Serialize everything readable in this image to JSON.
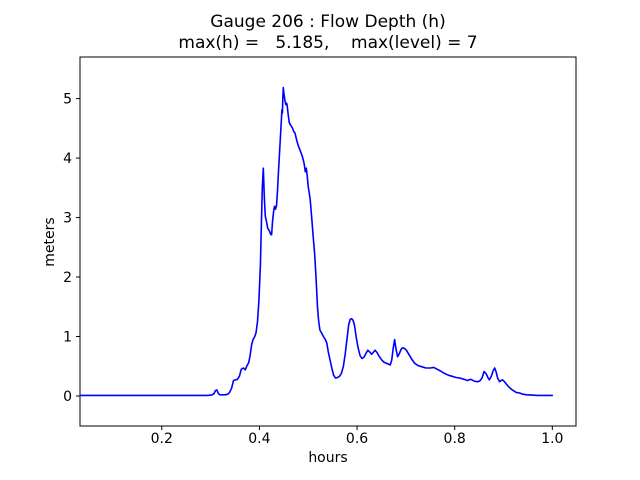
{
  "figure": {
    "background": "#ffffff"
  },
  "chart_data": {
    "type": "line",
    "title": "Gauge 206 : Flow Depth (h)",
    "subtitle": "max(h) =   5.185,    max(level) = 7",
    "xlabel": "hours",
    "ylabel": "meters",
    "max_h": 5.185,
    "max_level": 7,
    "grid": false,
    "legend": "none",
    "line_color": "#0000ff",
    "axis_color": "#000000",
    "xlim": [
      0.0325,
      1.0485
    ],
    "ylim": [
      -0.505,
      5.7
    ],
    "xticks": [
      0.2,
      0.4,
      0.6,
      0.8,
      1.0
    ],
    "xtick_labels": [
      "0.2",
      "0.4",
      "0.6",
      "0.8",
      "1.0"
    ],
    "yticks": [
      0,
      1,
      2,
      3,
      4,
      5
    ],
    "ytick_labels": [
      "0",
      "1",
      "2",
      "3",
      "4",
      "5"
    ],
    "series": [
      {
        "name": "flow-depth-h",
        "points": [
          [
            0.033,
            0.01
          ],
          [
            0.06,
            0.01
          ],
          [
            0.09,
            0.01
          ],
          [
            0.12,
            0.01
          ],
          [
            0.15,
            0.01
          ],
          [
            0.18,
            0.01
          ],
          [
            0.21,
            0.01
          ],
          [
            0.24,
            0.01
          ],
          [
            0.27,
            0.01
          ],
          [
            0.295,
            0.01
          ],
          [
            0.303,
            0.02
          ],
          [
            0.307,
            0.04
          ],
          [
            0.31,
            0.09
          ],
          [
            0.313,
            0.1
          ],
          [
            0.316,
            0.04
          ],
          [
            0.319,
            0.02
          ],
          [
            0.324,
            0.02
          ],
          [
            0.33,
            0.02
          ],
          [
            0.335,
            0.03
          ],
          [
            0.339,
            0.06
          ],
          [
            0.343,
            0.13
          ],
          [
            0.347,
            0.26
          ],
          [
            0.351,
            0.27
          ],
          [
            0.355,
            0.28
          ],
          [
            0.359,
            0.33
          ],
          [
            0.363,
            0.45
          ],
          [
            0.367,
            0.47
          ],
          [
            0.371,
            0.44
          ],
          [
            0.374,
            0.5
          ],
          [
            0.378,
            0.56
          ],
          [
            0.381,
            0.68
          ],
          [
            0.384,
            0.86
          ],
          [
            0.387,
            0.95
          ],
          [
            0.39,
            0.99
          ],
          [
            0.393,
            1.06
          ],
          [
            0.396,
            1.25
          ],
          [
            0.399,
            1.6
          ],
          [
            0.402,
            2.2
          ],
          [
            0.404,
            2.9
          ],
          [
            0.406,
            3.5
          ],
          [
            0.408,
            3.83
          ],
          [
            0.41,
            3.35
          ],
          [
            0.412,
            3.02
          ],
          [
            0.414,
            2.96
          ],
          [
            0.417,
            2.82
          ],
          [
            0.42,
            2.78
          ],
          [
            0.423,
            2.72
          ],
          [
            0.425,
            2.71
          ],
          [
            0.427,
            2.95
          ],
          [
            0.429,
            3.1
          ],
          [
            0.431,
            3.19
          ],
          [
            0.433,
            3.14
          ],
          [
            0.435,
            3.2
          ],
          [
            0.437,
            3.45
          ],
          [
            0.439,
            3.75
          ],
          [
            0.441,
            4.05
          ],
          [
            0.443,
            4.35
          ],
          [
            0.445,
            4.65
          ],
          [
            0.446,
            4.81
          ],
          [
            0.447,
            4.76
          ],
          [
            0.448,
            5.0
          ],
          [
            0.449,
            5.185
          ],
          [
            0.45,
            5.1
          ],
          [
            0.451,
            5.05
          ],
          [
            0.452,
            4.98
          ],
          [
            0.454,
            4.9
          ],
          [
            0.456,
            4.92
          ],
          [
            0.457,
            4.88
          ],
          [
            0.459,
            4.73
          ],
          [
            0.461,
            4.6
          ],
          [
            0.464,
            4.55
          ],
          [
            0.466,
            4.53
          ],
          [
            0.468,
            4.5
          ],
          [
            0.47,
            4.45
          ],
          [
            0.473,
            4.42
          ],
          [
            0.477,
            4.28
          ],
          [
            0.48,
            4.2
          ],
          [
            0.483,
            4.14
          ],
          [
            0.487,
            4.05
          ],
          [
            0.49,
            3.97
          ],
          [
            0.492,
            3.89
          ],
          [
            0.494,
            3.77
          ],
          [
            0.496,
            3.83
          ],
          [
            0.498,
            3.69
          ],
          [
            0.5,
            3.52
          ],
          [
            0.502,
            3.42
          ],
          [
            0.504,
            3.3
          ],
          [
            0.507,
            3.02
          ],
          [
            0.51,
            2.7
          ],
          [
            0.513,
            2.4
          ],
          [
            0.516,
            2.0
          ],
          [
            0.519,
            1.5
          ],
          [
            0.521,
            1.28
          ],
          [
            0.524,
            1.11
          ],
          [
            0.528,
            1.05
          ],
          [
            0.531,
            1.0
          ],
          [
            0.535,
            0.95
          ],
          [
            0.538,
            0.89
          ],
          [
            0.541,
            0.75
          ],
          [
            0.544,
            0.63
          ],
          [
            0.548,
            0.48
          ],
          [
            0.552,
            0.35
          ],
          [
            0.556,
            0.3
          ],
          [
            0.56,
            0.31
          ],
          [
            0.564,
            0.33
          ],
          [
            0.568,
            0.38
          ],
          [
            0.572,
            0.5
          ],
          [
            0.576,
            0.72
          ],
          [
            0.58,
            1.0
          ],
          [
            0.583,
            1.2
          ],
          [
            0.586,
            1.29
          ],
          [
            0.589,
            1.3
          ],
          [
            0.592,
            1.27
          ],
          [
            0.595,
            1.18
          ],
          [
            0.598,
            1.0
          ],
          [
            0.602,
            0.82
          ],
          [
            0.606,
            0.68
          ],
          [
            0.61,
            0.63
          ],
          [
            0.614,
            0.65
          ],
          [
            0.618,
            0.71
          ],
          [
            0.622,
            0.77
          ],
          [
            0.626,
            0.74
          ],
          [
            0.63,
            0.7
          ],
          [
            0.634,
            0.74
          ],
          [
            0.637,
            0.77
          ],
          [
            0.641,
            0.73
          ],
          [
            0.645,
            0.67
          ],
          [
            0.65,
            0.61
          ],
          [
            0.655,
            0.57
          ],
          [
            0.66,
            0.55
          ],
          [
            0.664,
            0.54
          ],
          [
            0.668,
            0.52
          ],
          [
            0.671,
            0.6
          ],
          [
            0.674,
            0.8
          ],
          [
            0.677,
            0.95
          ],
          [
            0.68,
            0.78
          ],
          [
            0.683,
            0.66
          ],
          [
            0.686,
            0.7
          ],
          [
            0.69,
            0.78
          ],
          [
            0.693,
            0.81
          ],
          [
            0.697,
            0.8
          ],
          [
            0.701,
            0.77
          ],
          [
            0.706,
            0.7
          ],
          [
            0.712,
            0.62
          ],
          [
            0.718,
            0.55
          ],
          [
            0.725,
            0.51
          ],
          [
            0.733,
            0.49
          ],
          [
            0.741,
            0.47
          ],
          [
            0.75,
            0.47
          ],
          [
            0.757,
            0.48
          ],
          [
            0.764,
            0.45
          ],
          [
            0.771,
            0.42
          ],
          [
            0.779,
            0.38
          ],
          [
            0.787,
            0.35
          ],
          [
            0.795,
            0.33
          ],
          [
            0.803,
            0.31
          ],
          [
            0.811,
            0.3
          ],
          [
            0.819,
            0.28
          ],
          [
            0.826,
            0.26
          ],
          [
            0.833,
            0.28
          ],
          [
            0.84,
            0.25
          ],
          [
            0.846,
            0.24
          ],
          [
            0.851,
            0.25
          ],
          [
            0.856,
            0.3
          ],
          [
            0.86,
            0.41
          ],
          [
            0.864,
            0.38
          ],
          [
            0.868,
            0.31
          ],
          [
            0.871,
            0.27
          ],
          [
            0.875,
            0.33
          ],
          [
            0.879,
            0.43
          ],
          [
            0.882,
            0.47
          ],
          [
            0.885,
            0.4
          ],
          [
            0.888,
            0.3
          ],
          [
            0.892,
            0.24
          ],
          [
            0.895,
            0.26
          ],
          [
            0.898,
            0.27
          ],
          [
            0.902,
            0.24
          ],
          [
            0.906,
            0.2
          ],
          [
            0.91,
            0.16
          ],
          [
            0.915,
            0.12
          ],
          [
            0.92,
            0.09
          ],
          [
            0.926,
            0.06
          ],
          [
            0.933,
            0.05
          ],
          [
            0.94,
            0.03
          ],
          [
            0.948,
            0.02
          ],
          [
            0.958,
            0.015
          ],
          [
            0.97,
            0.01
          ],
          [
            0.985,
            0.01
          ],
          [
            1.0,
            0.01
          ]
        ]
      }
    ]
  }
}
